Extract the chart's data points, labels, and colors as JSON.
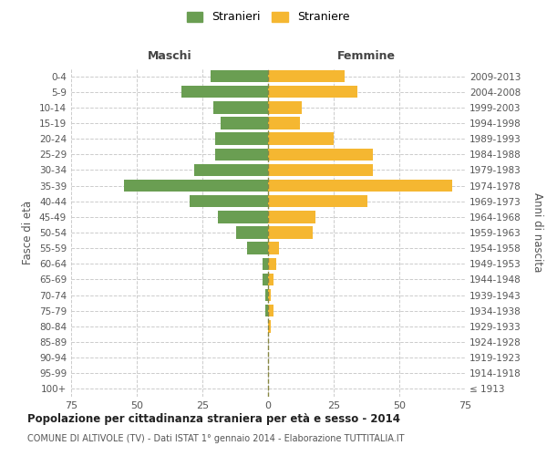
{
  "age_groups": [
    "100+",
    "95-99",
    "90-94",
    "85-89",
    "80-84",
    "75-79",
    "70-74",
    "65-69",
    "60-64",
    "55-59",
    "50-54",
    "45-49",
    "40-44",
    "35-39",
    "30-34",
    "25-29",
    "20-24",
    "15-19",
    "10-14",
    "5-9",
    "0-4"
  ],
  "birth_years": [
    "≤ 1913",
    "1914-1918",
    "1919-1923",
    "1924-1928",
    "1929-1933",
    "1934-1938",
    "1939-1943",
    "1944-1948",
    "1949-1953",
    "1954-1958",
    "1959-1963",
    "1964-1968",
    "1969-1973",
    "1974-1978",
    "1979-1983",
    "1984-1988",
    "1989-1993",
    "1994-1998",
    "1999-2003",
    "2004-2008",
    "2009-2013"
  ],
  "maschi": [
    0,
    0,
    0,
    0,
    0,
    1,
    1,
    2,
    2,
    8,
    12,
    19,
    30,
    55,
    28,
    20,
    20,
    18,
    21,
    33,
    22
  ],
  "femmine": [
    0,
    0,
    0,
    0,
    1,
    2,
    1,
    2,
    3,
    4,
    17,
    18,
    38,
    70,
    40,
    40,
    25,
    12,
    13,
    34,
    29
  ],
  "male_color": "#6a9e52",
  "female_color": "#f5b731",
  "grid_color": "#cccccc",
  "center_line_color": "#888844",
  "background_color": "#ffffff",
  "title": "Popolazione per cittadinanza straniera per età e sesso - 2014",
  "subtitle": "COMUNE DI ALTIVOLE (TV) - Dati ISTAT 1° gennaio 2014 - Elaborazione TUTTITALIA.IT",
  "xlabel_left": "Maschi",
  "xlabel_right": "Femmine",
  "ylabel_left": "Fasce di età",
  "ylabel_right": "Anni di nascita",
  "xlim": 75,
  "legend_stranieri": "Stranieri",
  "legend_straniere": "Straniere"
}
